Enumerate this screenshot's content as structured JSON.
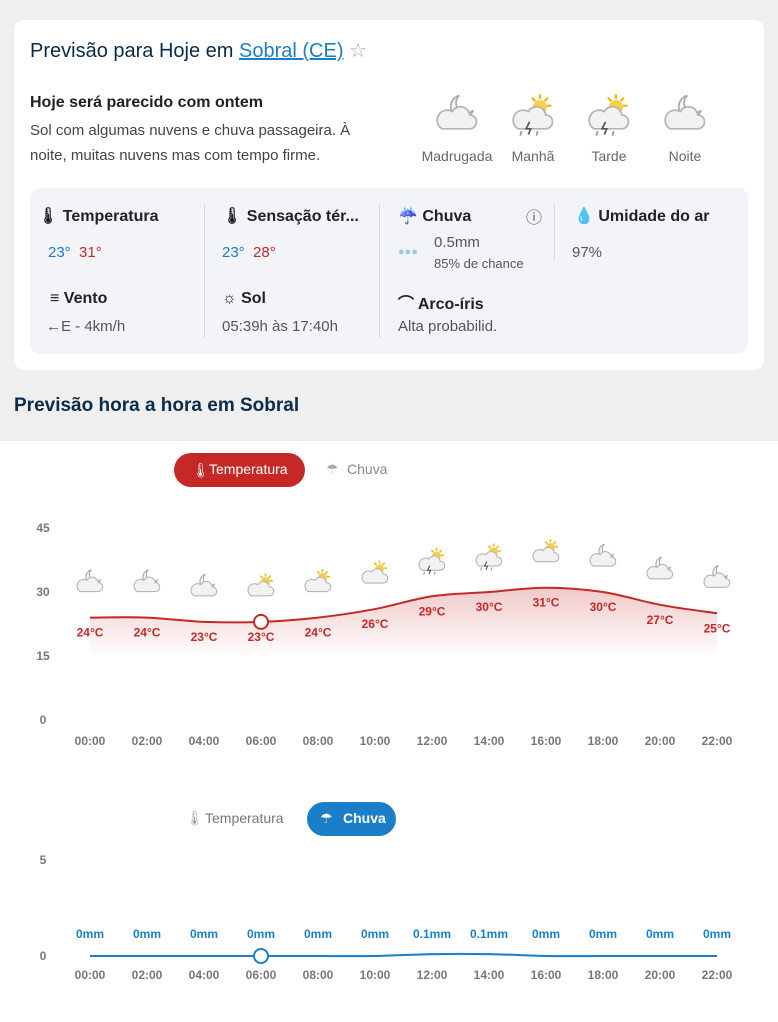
{
  "header": {
    "title": "Previsão para Hoje em",
    "location": "Sobral (CE)"
  },
  "summary": {
    "headline": "Hoje será parecido com ontem",
    "text": "Sol com algumas nuvens e chuva passageira. À noite, muitas nuvens mas com tempo firme."
  },
  "periods": [
    "Madrugada",
    "Manhã",
    "Tarde",
    "Noite"
  ],
  "details": [
    {
      "label": "Temperatura",
      "min": "23°",
      "max": "31°"
    },
    {
      "label": "Sensação tér...",
      "min": "23°",
      "max": "28°"
    },
    {
      "label": "Chuva",
      "amount": "0.5mm",
      "chance": "85% de chance"
    },
    {
      "label": "Umidade do ar",
      "value": "97%"
    },
    {
      "label": "Vento",
      "value": "←E - 4km/h"
    },
    {
      "label": "Sol",
      "value": "05:39h às 17:40h"
    },
    {
      "label": "Arco-íris",
      "value": "Alta probabilid."
    }
  ],
  "section_title": "Previsão hora a hora em Sobral",
  "tabs": [
    "Temperatura",
    "Chuva"
  ],
  "chart_data": [
    {
      "type": "line",
      "categories": [
        "00:00",
        "02:00",
        "04:00",
        "06:00",
        "08:00",
        "10:00",
        "12:00",
        "14:00",
        "16:00",
        "18:00",
        "20:00",
        "22:00"
      ],
      "values": [
        24,
        24,
        23,
        23,
        24,
        26,
        29,
        30,
        31,
        30,
        27,
        25
      ],
      "value_labels": [
        "24°C",
        "24°C",
        "23°C",
        "23°C",
        "24°C",
        "26°C",
        "29°C",
        "30°C",
        "31°C",
        "30°C",
        "27°C",
        "25°C"
      ],
      "color": "#c62828",
      "ylim": [
        0,
        45
      ],
      "yticks": [
        0,
        15,
        30,
        45
      ]
    },
    {
      "type": "line",
      "categories": [
        "00:00",
        "02:00",
        "04:00",
        "06:00",
        "08:00",
        "10:00",
        "12:00",
        "14:00",
        "16:00",
        "18:00",
        "20:00",
        "22:00"
      ],
      "values": [
        0,
        0,
        0,
        0,
        0,
        0,
        0.1,
        0.1,
        0,
        0,
        0,
        0
      ],
      "value_labels": [
        "0mm",
        "0mm",
        "0mm",
        "0mm",
        "0mm",
        "0mm",
        "0.1mm",
        "0.1mm",
        "0mm",
        "0mm",
        "0mm",
        "0mm"
      ],
      "color": "#1a7fc8",
      "ylim": [
        0,
        5
      ],
      "yticks": [
        0,
        5
      ]
    }
  ]
}
